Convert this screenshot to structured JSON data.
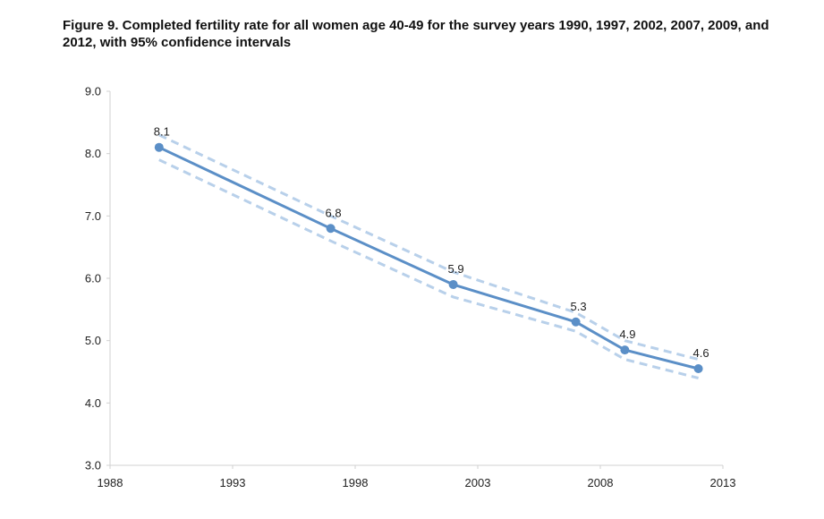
{
  "chart_data": {
    "type": "line",
    "title": "Figure 9. Completed fertility rate for all women age 40-49 for the survey years 1990, 1997, 2002, 2007, 2009, and 2012, with 95% confidence intervals",
    "xlabel": "",
    "ylabel": "",
    "xlim": [
      1988,
      2013
    ],
    "ylim": [
      3.0,
      9.0
    ],
    "x_ticks": [
      "1988",
      "1993",
      "1998",
      "2003",
      "2008",
      "2013"
    ],
    "y_ticks": [
      "3.0",
      "4.0",
      "5.0",
      "6.0",
      "7.0",
      "8.0",
      "9.0"
    ],
    "grid": false,
    "legend": "none",
    "series": [
      {
        "x": [
          1990,
          1997,
          2002,
          2007,
          2009,
          2012
        ],
        "values": [
          8.1,
          6.8,
          5.9,
          5.3,
          4.85,
          4.55
        ],
        "labels": [
          "8.1",
          "6.8",
          "5.9",
          "5.3",
          "4.9",
          "4.6"
        ],
        "color": "#5b8fc7",
        "style": "solid"
      },
      {
        "x": [
          1990,
          1997,
          2002,
          2007,
          2009,
          2012
        ],
        "values": [
          8.3,
          7.0,
          6.1,
          5.45,
          5.0,
          4.7
        ],
        "color": "#b8d0ea",
        "style": "dashed"
      },
      {
        "x": [
          1990,
          1997,
          2002,
          2007,
          2009,
          2012
        ],
        "values": [
          7.9,
          6.6,
          5.7,
          5.15,
          4.7,
          4.4
        ],
        "color": "#b8d0ea",
        "style": "dashed"
      }
    ]
  }
}
